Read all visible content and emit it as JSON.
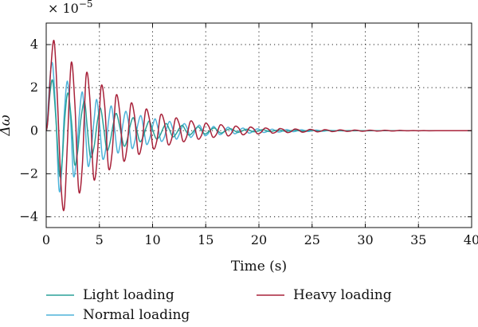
{
  "chart_data": {
    "type": "line",
    "xlabel": "Time (s)",
    "ylabel": "Δω",
    "y_multiplier_label": "× 10",
    "y_multiplier_exponent": "−5",
    "xlim": [
      0,
      40
    ],
    "ylim": [
      -4.5,
      5
    ],
    "xticks": [
      0,
      5,
      10,
      15,
      20,
      25,
      30,
      35,
      40
    ],
    "yticks": [
      -4,
      -2,
      0,
      2,
      4
    ],
    "grid": true,
    "legend_position": "bottom",
    "series": [
      {
        "name": "Light loading",
        "color": "#2aa198",
        "x": [
          0,
          0.12,
          0.37,
          0.62,
          0.92,
          1.25,
          1.5,
          1.75,
          2.05,
          2.4,
          2.67,
          2.95,
          3.25,
          3.6,
          3.85,
          4.15,
          4.5,
          4.8,
          5.1,
          5.4,
          5.7,
          6.0,
          6.3,
          6.6,
          6.95,
          7.3,
          7.6,
          7.9,
          8.2,
          8.5,
          8.8,
          9.1,
          9.4,
          9.7,
          10.0,
          10.35,
          10.7,
          11.0,
          11.3,
          11.6,
          11.9,
          12.2,
          12.5,
          12.8,
          13.1,
          13.4,
          13.7,
          14.0,
          14.3,
          14.6,
          14.9,
          15.2,
          15.5,
          15.8,
          16.1,
          16.4,
          16.7,
          17.0,
          17.35,
          17.7,
          18.0,
          18.3,
          18.6,
          18.9,
          19.2,
          19.5,
          19.8,
          20.1,
          20.4,
          20.7,
          21.0,
          21.3,
          21.6,
          21.9,
          22.2,
          22.5,
          22.8,
          23.1,
          23.4,
          23.7,
          24.0,
          24.3,
          24.6,
          24.9,
          25.2,
          25.5,
          25.8,
          26.1,
          26.4,
          26.7,
          27.0,
          27.5,
          28.0,
          28.5,
          29.0,
          29.5,
          30.0,
          31.0,
          32.0,
          33.0,
          34.0,
          35.0,
          36.0,
          37.0,
          38.0,
          39.0,
          40.0
        ],
        "y": [
          0,
          0.3,
          1.8,
          2.3,
          0.5,
          -2.05,
          -1.4,
          0.6,
          1.75,
          0.3,
          -1.55,
          -1.0,
          0.5,
          1.35,
          0.2,
          -1.2,
          -0.75,
          0.4,
          1.05,
          0.15,
          -0.9,
          -0.55,
          0.3,
          0.8,
          0.1,
          -0.7,
          -0.45,
          0.25,
          0.6,
          0.05,
          -0.5,
          -0.3,
          0.15,
          0.45,
          0.05,
          -0.38,
          -0.22,
          0.12,
          0.33,
          0.03,
          -0.28,
          -0.16,
          0.1,
          0.25,
          0.02,
          -0.2,
          -0.12,
          0.07,
          0.18,
          0.01,
          -0.15,
          -0.08,
          0.05,
          0.13,
          0.01,
          -0.11,
          -0.06,
          0.04,
          0.09,
          0.0,
          -0.08,
          -0.04,
          0.03,
          0.07,
          0.0,
          -0.05,
          -0.03,
          0.02,
          0.05,
          0.0,
          -0.04,
          -0.02,
          0.015,
          0.035,
          0.0,
          -0.03,
          -0.015,
          0.01,
          0.025,
          0.0,
          -0.02,
          -0.01,
          0.008,
          0.018,
          0.0,
          -0.014,
          -0.007,
          0.005,
          0.012,
          0.0,
          -0.01,
          0.006,
          -0.004,
          0.004,
          -0.003,
          0.002,
          -0.002,
          0.001,
          -0.001,
          0.001,
          0,
          0,
          0,
          0,
          0,
          0,
          0
        ]
      },
      {
        "name": "Normal loading",
        "color": "#4fb3d9",
        "x": [
          0,
          0.1,
          0.35,
          0.6,
          0.9,
          1.2,
          1.45,
          1.7,
          2.0,
          2.3,
          2.55,
          2.82,
          3.1,
          3.4,
          3.65,
          3.92,
          4.2,
          4.5,
          4.75,
          5.02,
          5.3,
          5.6,
          5.85,
          6.12,
          6.4,
          6.7,
          6.95,
          7.22,
          7.5,
          7.8,
          8.05,
          8.32,
          8.6,
          8.9,
          9.15,
          9.42,
          9.7,
          10.0,
          10.25,
          10.52,
          10.8,
          11.1,
          11.35,
          11.62,
          11.9,
          12.2,
          12.45,
          12.72,
          13.0,
          13.3,
          13.55,
          13.82,
          14.1,
          14.4,
          14.65,
          14.92,
          15.2,
          15.5,
          15.75,
          16.02,
          16.3,
          16.6,
          16.85,
          17.12,
          17.4,
          17.7,
          17.95,
          18.22,
          18.5,
          18.8,
          19.05,
          19.32,
          19.6,
          19.9,
          20.15,
          20.42,
          20.7,
          21.0,
          21.25,
          21.52,
          21.8,
          22.1,
          22.35,
          22.62,
          22.9,
          23.2,
          23.45,
          23.72,
          24.0,
          24.3,
          24.55,
          24.82,
          25.1,
          25.4,
          25.65,
          25.92,
          26.2,
          26.5,
          27.0,
          28.0,
          29.0,
          30.0,
          32.0,
          34.0,
          36.0,
          38.0,
          40.0
        ],
        "y": [
          0,
          0.4,
          2.4,
          3.1,
          0.8,
          -2.7,
          -1.9,
          0.8,
          2.3,
          0.5,
          -2.05,
          -1.4,
          0.65,
          1.8,
          0.35,
          -1.6,
          -1.05,
          0.5,
          1.45,
          0.3,
          -1.28,
          -0.85,
          0.4,
          1.15,
          0.22,
          -1.0,
          -0.65,
          0.32,
          0.9,
          0.18,
          -0.8,
          -0.52,
          0.25,
          0.7,
          0.14,
          -0.62,
          -0.4,
          0.2,
          0.55,
          0.1,
          -0.48,
          -0.31,
          0.15,
          0.43,
          0.08,
          -0.38,
          -0.24,
          0.12,
          0.33,
          0.06,
          -0.3,
          -0.19,
          0.09,
          0.26,
          0.05,
          -0.23,
          -0.15,
          0.07,
          0.2,
          0.04,
          -0.18,
          -0.11,
          0.055,
          0.16,
          0.03,
          -0.14,
          -0.09,
          0.04,
          0.12,
          0.02,
          -0.11,
          -0.07,
          0.03,
          0.09,
          0.015,
          -0.08,
          -0.05,
          0.025,
          0.07,
          0.01,
          -0.06,
          -0.04,
          0.02,
          0.05,
          0.01,
          -0.045,
          -0.03,
          0.014,
          0.04,
          0.007,
          -0.035,
          -0.022,
          0.01,
          0.03,
          0.005,
          -0.026,
          -0.016,
          0.008,
          0.005,
          -0.004,
          0.003,
          -0.002,
          0.001,
          0,
          0,
          0,
          0
        ]
      },
      {
        "name": "Heavy loading",
        "color": "#a8223a",
        "x": [
          0,
          0.15,
          0.45,
          0.75,
          1.05,
          1.4,
          1.7,
          2.0,
          2.35,
          2.7,
          3.05,
          3.4,
          3.75,
          4.1,
          4.45,
          4.8,
          5.15,
          5.5,
          5.85,
          6.2,
          6.55,
          6.9,
          7.25,
          7.6,
          7.95,
          8.3,
          8.65,
          9.0,
          9.35,
          9.7,
          10.05,
          10.4,
          10.75,
          11.1,
          11.45,
          11.8,
          12.15,
          12.5,
          12.85,
          13.2,
          13.55,
          13.9,
          14.25,
          14.6,
          14.95,
          15.3,
          15.65,
          16.0,
          16.35,
          16.7,
          17.05,
          17.4,
          17.75,
          18.1,
          18.45,
          18.8,
          19.15,
          19.5,
          19.85,
          20.2,
          20.55,
          20.9,
          21.25,
          21.6,
          21.95,
          22.3,
          22.65,
          23.0,
          23.35,
          23.7,
          24.05,
          24.4,
          24.75,
          25.1,
          25.45,
          25.8,
          26.15,
          26.5,
          26.85,
          27.2,
          27.55,
          27.9,
          28.25,
          28.6,
          28.95,
          29.3,
          29.65,
          30.0,
          30.35,
          30.7,
          31.05,
          31.4,
          31.75,
          32.1,
          32.45,
          32.8,
          33.15,
          33.5,
          34.0,
          34.5,
          35.0,
          35.5,
          36.0,
          37.0,
          38.0,
          39.0,
          40.0
        ],
        "y": [
          0,
          0.5,
          3.0,
          4.15,
          1.5,
          -2.6,
          -3.6,
          -0.5,
          3.15,
          1.2,
          -2.75,
          -1.6,
          2.55,
          1.5,
          -2.15,
          -1.25,
          2.0,
          1.15,
          -1.7,
          -1.0,
          1.58,
          0.9,
          -1.33,
          -0.78,
          1.22,
          0.7,
          -1.03,
          -0.6,
          0.95,
          0.54,
          -0.8,
          -0.47,
          0.72,
          0.42,
          -0.62,
          -0.37,
          0.56,
          0.32,
          -0.48,
          -0.28,
          0.43,
          0.25,
          -0.37,
          -0.22,
          0.33,
          0.19,
          -0.29,
          -0.17,
          0.26,
          0.15,
          -0.23,
          -0.13,
          0.2,
          0.12,
          -0.18,
          -0.1,
          0.16,
          0.09,
          -0.14,
          -0.08,
          0.12,
          0.07,
          -0.11,
          -0.06,
          0.1,
          0.055,
          -0.085,
          -0.05,
          0.075,
          0.043,
          -0.066,
          -0.038,
          0.058,
          0.034,
          -0.052,
          -0.03,
          0.045,
          0.026,
          -0.04,
          -0.023,
          0.035,
          0.02,
          -0.031,
          -0.018,
          0.027,
          0.016,
          -0.024,
          -0.014,
          0.021,
          0.012,
          -0.018,
          -0.011,
          0.016,
          0.01,
          -0.014,
          -0.008,
          0.012,
          0.007,
          -0.006,
          0.005,
          -0.004,
          0.003,
          -0.002,
          0.001,
          0,
          0,
          0
        ]
      }
    ]
  }
}
